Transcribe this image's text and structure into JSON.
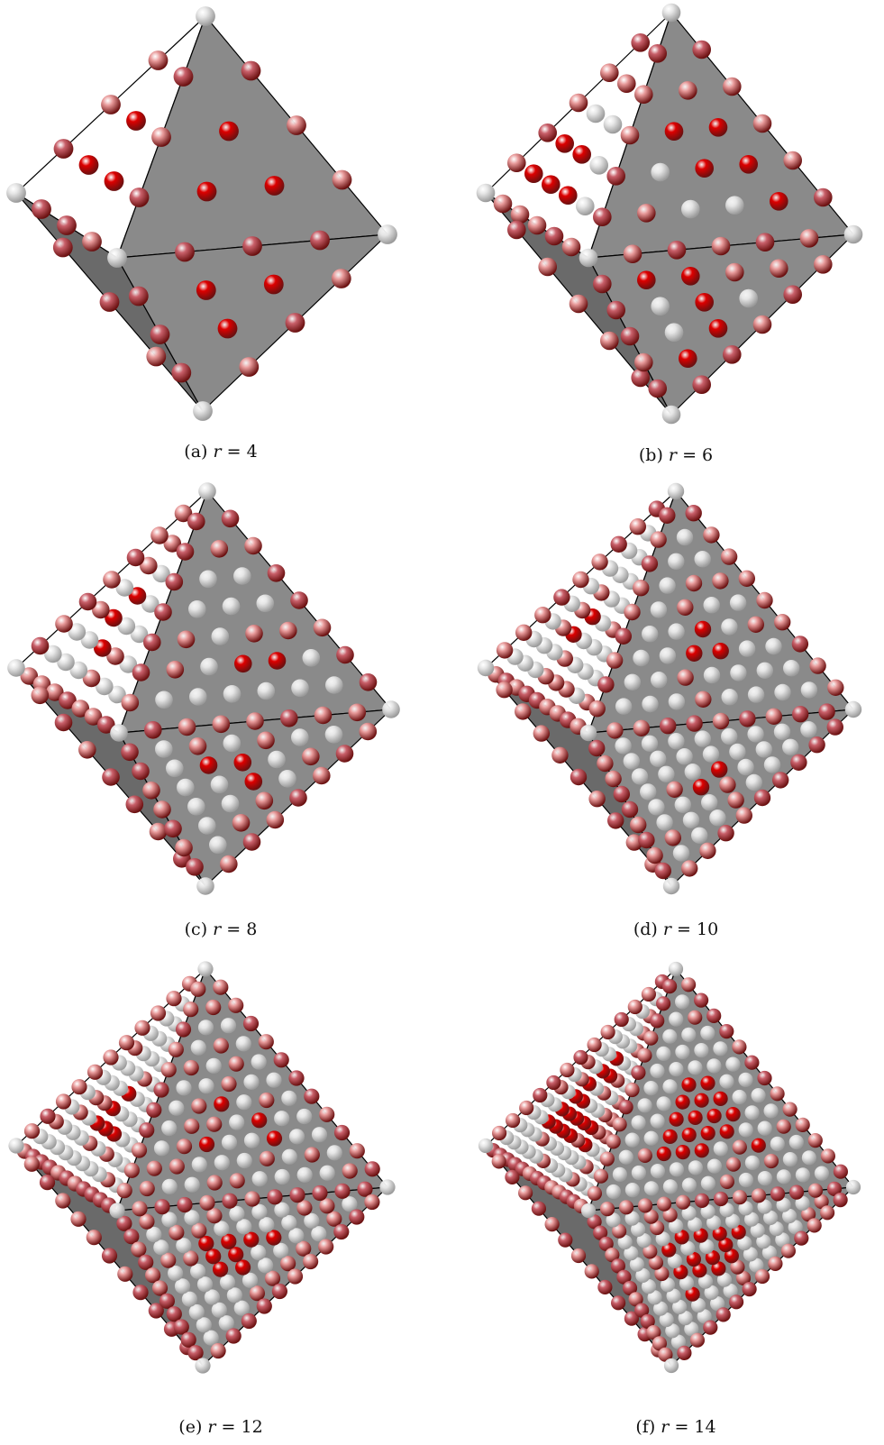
{
  "panels": [
    {
      "id": "a",
      "label": "(a)",
      "var": "r",
      "eq": "=",
      "value": "4",
      "r": 4
    },
    {
      "id": "b",
      "label": "(b)",
      "var": "r",
      "eq": "=",
      "value": "6",
      "r": 6
    },
    {
      "id": "c",
      "label": "(c)",
      "var": "r",
      "eq": "=",
      "value": "8",
      "r": 8
    },
    {
      "id": "d",
      "label": "(d)",
      "var": "r",
      "eq": "=",
      "value": "10",
      "r": 10
    },
    {
      "id": "e",
      "label": "(e)",
      "var": "r",
      "eq": "=",
      "value": "12",
      "r": 12
    },
    {
      "id": "f",
      "label": "(f)",
      "var": "r",
      "eq": "=",
      "value": "14",
      "r": 14
    }
  ],
  "colors": {
    "face_light": "#ffffff",
    "face_mid": "#8a8a8a",
    "face_dark": "#6a6a6a",
    "edge": "#000000",
    "sphere_red": "#dd0000",
    "sphere_pink": "#e89a9a",
    "sphere_rose": "#c9606a",
    "sphere_white": "#e6e6e6"
  }
}
